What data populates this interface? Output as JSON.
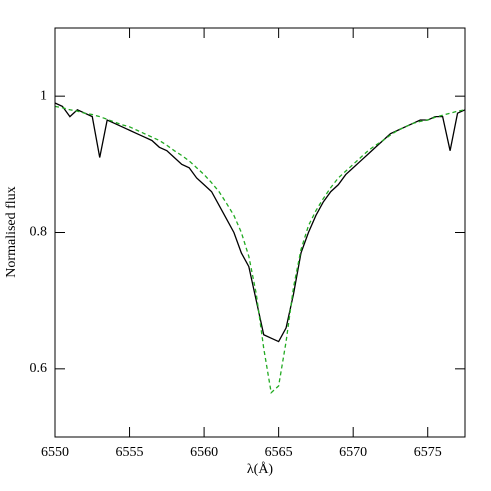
{
  "chart_data": {
    "type": "line",
    "x_label": "λ(Å)",
    "y_label": "Normalised flux",
    "x": [
      6550,
      6550.5,
      6551,
      6551.5,
      6552,
      6552.5,
      6553,
      6553.5,
      6554,
      6554.5,
      6555,
      6555.5,
      6556,
      6556.5,
      6557,
      6557.5,
      6558,
      6558.5,
      6559,
      6559.5,
      6560,
      6560.5,
      6561,
      6561.5,
      6562,
      6562.5,
      6563,
      6563.5,
      6564,
      6564.5,
      6565,
      6565.5,
      6566,
      6566.5,
      6567,
      6567.5,
      6568,
      6568.5,
      6569,
      6569.5,
      6570,
      6570.5,
      6571,
      6571.5,
      6572,
      6572.5,
      6573,
      6573.5,
      6574,
      6574.5,
      6575,
      6575.5,
      6576,
      6576.5,
      6577,
      6577.5
    ],
    "series": [
      {
        "color": "#000000",
        "dash": false,
        "values": [
          0.99,
          0.985,
          0.97,
          0.98,
          0.975,
          0.97,
          0.91,
          0.965,
          0.96,
          0.955,
          0.95,
          0.945,
          0.94,
          0.935,
          0.925,
          0.92,
          0.91,
          0.9,
          0.895,
          0.88,
          0.87,
          0.86,
          0.84,
          0.82,
          0.8,
          0.77,
          0.75,
          0.7,
          0.65,
          0.645,
          0.64,
          0.66,
          0.71,
          0.77,
          0.8,
          0.825,
          0.845,
          0.86,
          0.87,
          0.885,
          0.895,
          0.905,
          0.915,
          0.925,
          0.935,
          0.945,
          0.95,
          0.955,
          0.96,
          0.965,
          0.965,
          0.97,
          0.97,
          0.92,
          0.975,
          0.98
        ]
      },
      {
        "color": "#22aa22",
        "dash": true,
        "values": [
          0.985,
          0.983,
          0.98,
          0.978,
          0.975,
          0.973,
          0.97,
          0.966,
          0.962,
          0.958,
          0.955,
          0.95,
          0.945,
          0.94,
          0.935,
          0.928,
          0.92,
          0.913,
          0.905,
          0.895,
          0.885,
          0.873,
          0.86,
          0.843,
          0.825,
          0.8,
          0.765,
          0.71,
          0.63,
          0.565,
          0.575,
          0.64,
          0.72,
          0.775,
          0.81,
          0.832,
          0.85,
          0.866,
          0.88,
          0.89,
          0.9,
          0.91,
          0.92,
          0.928,
          0.935,
          0.943,
          0.95,
          0.955,
          0.96,
          0.963,
          0.965,
          0.969,
          0.972,
          0.975,
          0.978,
          0.98
        ]
      }
    ],
    "xlim": [
      6550,
      6577.5
    ],
    "ylim": [
      0.5,
      1.1
    ],
    "xticks": [
      6550,
      6555,
      6560,
      6565,
      6570,
      6575
    ],
    "yticks": [
      0.6,
      0.8,
      1
    ]
  }
}
